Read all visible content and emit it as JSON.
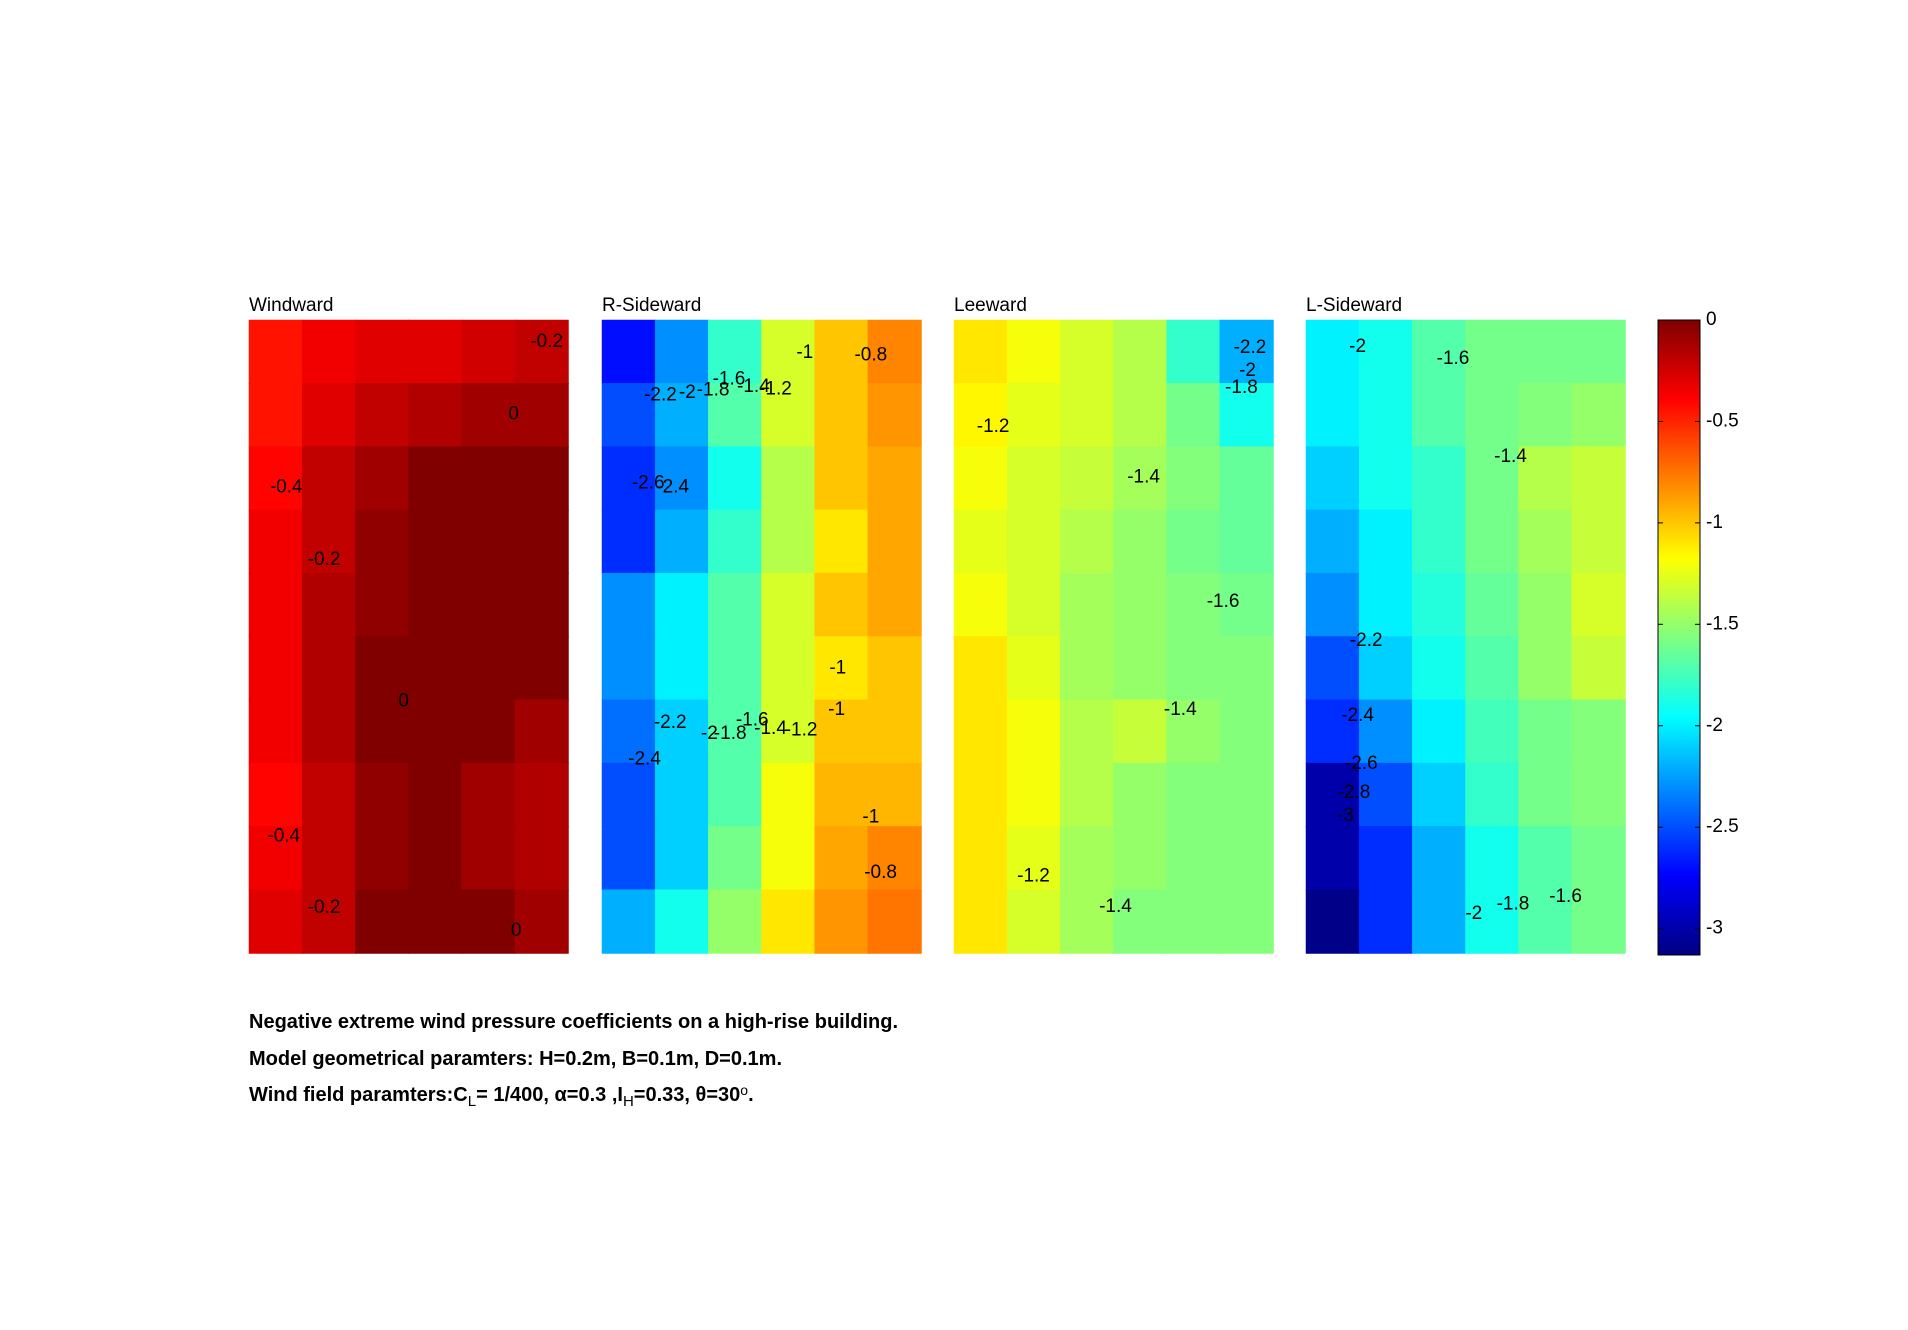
{
  "chart_data": [
    {
      "type": "contour",
      "title": "Windward",
      "z": [
        [
          -0.45,
          -0.35,
          -0.3,
          -0.3,
          -0.25,
          -0.2
        ],
        [
          -0.45,
          -0.3,
          -0.2,
          -0.15,
          -0.1,
          -0.1
        ],
        [
          -0.4,
          -0.2,
          -0.1,
          0,
          0,
          0
        ],
        [
          -0.35,
          -0.2,
          -0.05,
          0,
          0,
          0
        ],
        [
          -0.35,
          -0.15,
          -0.05,
          0,
          0,
          0
        ],
        [
          -0.35,
          -0.15,
          0,
          0,
          0,
          0
        ],
        [
          -0.35,
          -0.15,
          0,
          0,
          0,
          -0.1
        ],
        [
          -0.4,
          -0.2,
          -0.05,
          0,
          -0.1,
          -0.15
        ],
        [
          -0.35,
          -0.2,
          -0.05,
          0,
          -0.1,
          -0.15
        ],
        [
          -0.3,
          -0.2,
          0,
          0,
          0,
          -0.1
        ]
      ],
      "contour_labels": [
        -0.2,
        0,
        -0.4,
        -0.2,
        0,
        -0.4,
        -0.2,
        0
      ]
    },
    {
      "type": "contour",
      "title": "R-Sideward",
      "z": [
        [
          -2.7,
          -2.3,
          -1.8,
          -1.3,
          -1.0,
          -0.8
        ],
        [
          -2.5,
          -2.2,
          -1.7,
          -1.3,
          -1.0,
          -0.85
        ],
        [
          -2.6,
          -2.3,
          -1.9,
          -1.4,
          -1.0,
          -0.9
        ],
        [
          -2.6,
          -2.2,
          -1.8,
          -1.4,
          -1.1,
          -0.9
        ],
        [
          -2.3,
          -2.0,
          -1.7,
          -1.3,
          -1.0,
          -0.9
        ],
        [
          -2.3,
          -2.0,
          -1.7,
          -1.3,
          -1.1,
          -1.0
        ],
        [
          -2.4,
          -2.1,
          -1.7,
          -1.3,
          -1.0,
          -1.0
        ],
        [
          -2.5,
          -2.1,
          -1.7,
          -1.2,
          -0.95,
          -0.95
        ],
        [
          -2.5,
          -2.1,
          -1.6,
          -1.2,
          -0.9,
          -0.8
        ],
        [
          -2.2,
          -1.9,
          -1.5,
          -1.1,
          -0.85,
          -0.75
        ]
      ],
      "contour_labels": [
        -2.2,
        -2,
        -1.8,
        -1.6,
        -1.4,
        -1.2,
        -1,
        -0.8,
        -2.6,
        -2.4,
        -1,
        -1,
        -2.2,
        -2,
        -1.8,
        -1.6,
        -1.4,
        -1.2,
        -2.4,
        -1,
        -0.8
      ]
    },
    {
      "type": "contour",
      "title": "Leeward",
      "z": [
        [
          -1.1,
          -1.2,
          -1.3,
          -1.4,
          -1.8,
          -2.2
        ],
        [
          -1.15,
          -1.25,
          -1.3,
          -1.4,
          -1.6,
          -1.9
        ],
        [
          -1.2,
          -1.3,
          -1.35,
          -1.45,
          -1.55,
          -1.65
        ],
        [
          -1.25,
          -1.3,
          -1.4,
          -1.5,
          -1.6,
          -1.65
        ],
        [
          -1.2,
          -1.3,
          -1.45,
          -1.5,
          -1.55,
          -1.6
        ],
        [
          -1.1,
          -1.25,
          -1.45,
          -1.5,
          -1.55,
          -1.55
        ],
        [
          -1.1,
          -1.2,
          -1.4,
          -1.35,
          -1.5,
          -1.55
        ],
        [
          -1.1,
          -1.2,
          -1.4,
          -1.5,
          -1.55,
          -1.55
        ],
        [
          -1.1,
          -1.25,
          -1.45,
          -1.5,
          -1.55,
          -1.55
        ],
        [
          -1.1,
          -1.3,
          -1.45,
          -1.55,
          -1.55,
          -1.55
        ]
      ],
      "contour_labels": [
        -1.2,
        -2.2,
        -2,
        -1.8,
        -1.4,
        -1.6,
        -1.4,
        -1.2,
        -1.4
      ]
    },
    {
      "type": "contour",
      "title": "L-Sideward",
      "z": [
        [
          -2.0,
          -1.9,
          -1.7,
          -1.6,
          -1.6,
          -1.6
        ],
        [
          -2.0,
          -1.9,
          -1.7,
          -1.6,
          -1.55,
          -1.5
        ],
        [
          -2.1,
          -1.9,
          -1.8,
          -1.6,
          -1.4,
          -1.35
        ],
        [
          -2.2,
          -2.0,
          -1.8,
          -1.6,
          -1.45,
          -1.35
        ],
        [
          -2.3,
          -2.0,
          -1.85,
          -1.65,
          -1.5,
          -1.3
        ],
        [
          -2.5,
          -2.1,
          -1.9,
          -1.7,
          -1.5,
          -1.35
        ],
        [
          -2.6,
          -2.3,
          -2.0,
          -1.75,
          -1.6,
          -1.55
        ],
        [
          -3.0,
          -2.5,
          -2.1,
          -1.8,
          -1.6,
          -1.55
        ],
        [
          -3.0,
          -2.6,
          -2.2,
          -1.9,
          -1.7,
          -1.6
        ],
        [
          -3.1,
          -2.6,
          -2.2,
          -1.9,
          -1.7,
          -1.6
        ]
      ],
      "contour_labels": [
        -2,
        -1.6,
        -1.4,
        -2.2,
        -2.4,
        -2.6,
        -2.8,
        -3,
        -2,
        -1.8,
        -1.6
      ]
    }
  ],
  "colorbar": {
    "clim": [
      -3.13,
      0
    ],
    "ticks": [
      0,
      -0.5,
      -1,
      -1.5,
      -2,
      -2.5,
      -3
    ]
  },
  "caption": {
    "lines": [
      [
        {
          "text": "Negative extreme wind pressure coefficients on a high-rise building."
        }
      ],
      [
        {
          "text": "Model geometrical paramters: H=0.2m, B=0.1m, D=0.1m."
        }
      ],
      [
        {
          "text": "Wind field paramters:C"
        },
        {
          "text": "L",
          "style": "sub"
        },
        {
          "text": "= 1/400, α=0.3 ,I"
        },
        {
          "text": "H",
          "style": "sub"
        },
        {
          "text": "=0.33, θ=30"
        },
        {
          "text": "o",
          "style": "sup"
        },
        {
          "text": "."
        }
      ]
    ]
  }
}
